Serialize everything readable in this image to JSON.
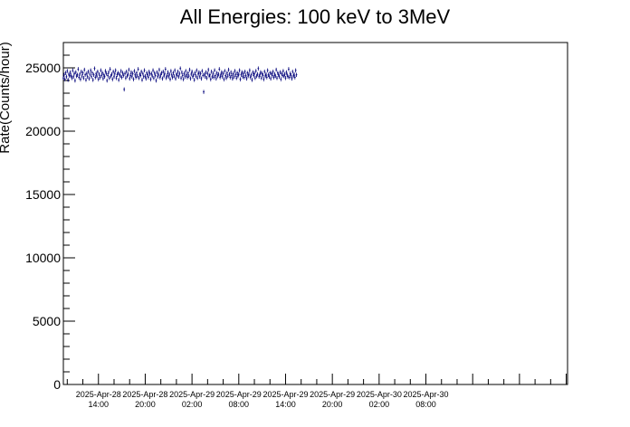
{
  "chart_data": {
    "type": "scatter",
    "title": "All Energies:  100 keV to 3MeV",
    "ylabel": "Rate(Counts/hour)",
    "xlabel": "",
    "ylim": [
      0,
      27000
    ],
    "yticks": [
      0,
      5000,
      10000,
      15000,
      20000,
      25000
    ],
    "xlim": [
      "2025-04-28 09:30",
      "2025-05-01 02:10"
    ],
    "xticks": [
      {
        "t": "2025-04-28 14:00",
        "line1": "2025-Apr-28",
        "line2": "14:00"
      },
      {
        "t": "2025-04-28 20:00",
        "line1": "2025-Apr-28",
        "line2": "20:00"
      },
      {
        "t": "2025-04-29 02:00",
        "line1": "2025-Apr-29",
        "line2": "02:00"
      },
      {
        "t": "2025-04-29 08:00",
        "line1": "2025-Apr-29",
        "line2": "08:00"
      },
      {
        "t": "2025-04-29 14:00",
        "line1": "2025-Apr-29",
        "line2": "14:00"
      },
      {
        "t": "2025-04-29 20:00",
        "line1": "2025-Apr-29",
        "line2": "20:00"
      },
      {
        "t": "2025-04-30 02:00",
        "line1": "2025-Apr-30",
        "line2": "02:00"
      },
      {
        "t": "2025-04-30 08:00",
        "line1": "2025-Apr-30",
        "line2": "08:00"
      }
    ],
    "grid": false,
    "marker_color": "#00007a",
    "series": [
      {
        "x_start": "2025-04-28 09:30",
        "x_step_minutes": 6,
        "y_error": 160,
        "values": [
          24200,
          24450,
          24100,
          24600,
          24300,
          24750,
          24050,
          24500,
          24350,
          24650,
          24400,
          24200,
          24800,
          24300,
          24550,
          24000,
          24650,
          24350,
          24450,
          24900,
          24250,
          24500,
          24100,
          24700,
          24350,
          24600,
          24200,
          24850,
          24450,
          24050,
          24550,
          24300,
          24700,
          24150,
          24500,
          24800,
          24300,
          24600,
          24050,
          24450,
          24950,
          24250,
          24550,
          24350,
          24700,
          24100,
          24500,
          24250,
          24800,
          24400,
          24600,
          24150,
          24450,
          24300,
          24750,
          24550,
          24000,
          24400,
          24650,
          24200,
          24900,
          24350,
          24500,
          24100,
          24700,
          24300,
          24550,
          24800,
          24200,
          24450,
          24600,
          24050,
          24500,
          24350,
          24750,
          24250,
          24600,
          24400,
          23300,
          24550,
          24200,
          24700,
          24350,
          24500,
          24850,
          24150,
          24400,
          24650,
          24300,
          24550,
          24100,
          24750,
          24450,
          24250,
          24600,
          24350,
          24900,
          24200,
          24500,
          24400,
          24700,
          24050,
          24550,
          24300,
          24800,
          24350,
          24150,
          24600,
          24450,
          24250,
          24700,
          24500,
          24100,
          24550,
          24350,
          24800,
          24200,
          24600,
          24400,
          24000,
          24650,
          24300,
          24500,
          24850,
          24250,
          24450,
          24600,
          24150,
          24700,
          24350,
          24550,
          24900,
          24200,
          24400,
          24650,
          24300,
          24500,
          24100,
          24750,
          24450,
          24250,
          24600,
          24350,
          24800,
          24150,
          24500,
          24400,
          24700,
          24300,
          24550,
          24950,
          24200,
          24650,
          24400,
          24100,
          24550,
          24300,
          24750,
          24450,
          24250,
          24600,
          24350,
          24850,
          24150,
          24500,
          24700,
          24300,
          24450,
          24050,
          24600,
          24350,
          24800,
          24200,
          24500,
          24650,
          24300,
          24550,
          24150,
          24750,
          24400,
          23100,
          24500,
          24300,
          24650,
          24200,
          24550,
          24850,
          24350,
          24450,
          24100,
          24700,
          24300,
          24550,
          24250,
          24800,
          24400,
          24150,
          24600,
          24350,
          24500,
          24900,
          24250,
          24450,
          24650,
          24300,
          24550,
          24100,
          24750,
          24400,
          24200,
          24600,
          24350,
          24850,
          24500,
          24250,
          24650,
          24400,
          24150,
          24550,
          24300,
          24750,
          24450,
          24200,
          24600,
          24350,
          24500,
          24800,
          24100,
          24450,
          24650,
          24300,
          24550,
          24250,
          24700,
          24400,
          24150,
          24600,
          24350,
          24500,
          24800,
          24250,
          24450,
          24050,
          24650,
          24400,
          24550,
          24200,
          24750,
          24350,
          24500,
          24950,
          24300,
          24450,
          24650,
          24200,
          24550,
          24400,
          24100,
          24700,
          24350,
          24500,
          24250,
          24800,
          24450,
          24300,
          24600,
          24150,
          24550,
          24400,
          24700,
          24250,
          24500,
          24350,
          24850,
          24200,
          24600,
          24450,
          24300,
          24650,
          24100,
          24550,
          24400,
          24750,
          24350,
          24500,
          24200,
          24650,
          24450,
          24300,
          24900,
          24250,
          24550,
          24400,
          24150,
          24700,
          24350,
          24500,
          24250,
          24800,
          24450
        ]
      }
    ]
  }
}
